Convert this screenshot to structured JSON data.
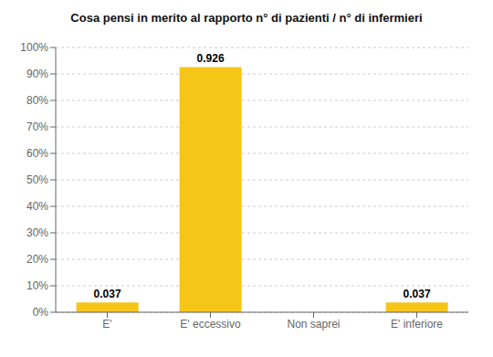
{
  "chart_data": {
    "type": "bar",
    "title": "Cosa pensi in merito al rapporto n° di pazienti / n° di infermieri",
    "categories": [
      "E'",
      "E' eccessivo",
      "Non saprei",
      "E' inferiore"
    ],
    "values": [
      0.037,
      0.926,
      0.0,
      0.037
    ],
    "data_labels": true,
    "value_labels": [
      "0.037",
      "0.926",
      null,
      "0.037"
    ],
    "color": "#F5C518",
    "ylim": [
      0,
      1.0
    ],
    "yticks": [
      {
        "value": 0.0,
        "label": "0%"
      },
      {
        "value": 0.1,
        "label": "10%"
      },
      {
        "value": 0.2,
        "label": "20%"
      },
      {
        "value": 0.3,
        "label": "30%"
      },
      {
        "value": 0.4,
        "label": "40%"
      },
      {
        "value": 0.5,
        "label": "50%"
      },
      {
        "value": 0.6,
        "label": "60%"
      },
      {
        "value": 0.7,
        "label": "70%"
      },
      {
        "value": 0.8,
        "label": "80%"
      },
      {
        "value": 0.9,
        "label": "90%"
      },
      {
        "value": 1.0,
        "label": "100%"
      }
    ],
    "grid": true
  }
}
